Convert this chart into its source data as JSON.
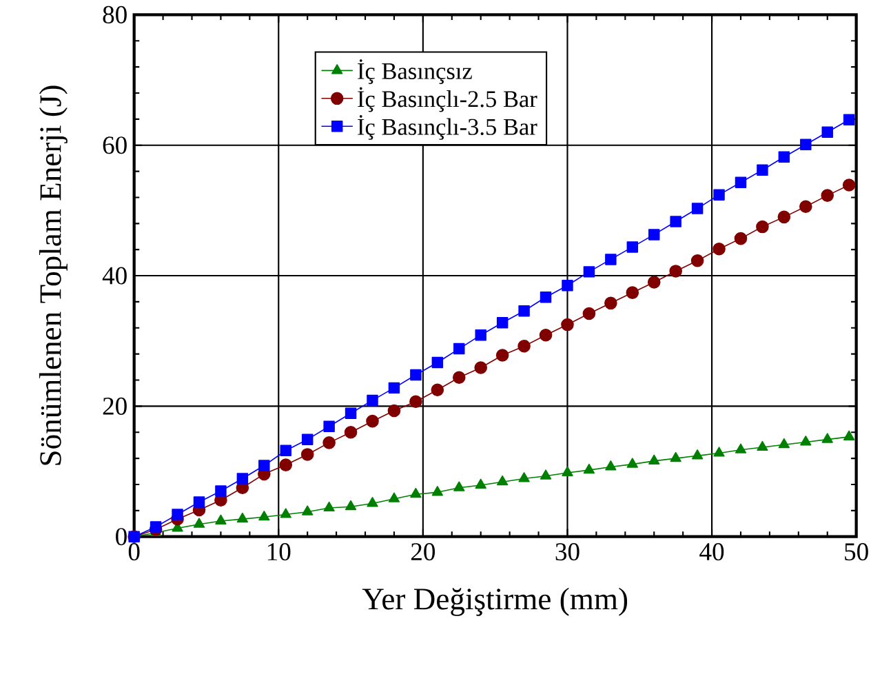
{
  "chart_data": {
    "type": "line",
    "xlabel": "Yer Değiştirme (mm)",
    "ylabel": "Sönümlenen Toplam Enerji (J)",
    "x": [
      0,
      1.5,
      3,
      4.5,
      6,
      7.5,
      9,
      10.5,
      12,
      13.5,
      15,
      16.5,
      18,
      19.5,
      21,
      22.5,
      24,
      25.5,
      27,
      28.5,
      30,
      31.5,
      33,
      34.5,
      36,
      37.5,
      39,
      40.5,
      42,
      43.5,
      45,
      46.5,
      48,
      49.5
    ],
    "series": [
      {
        "name": "İç Basınçsız",
        "color": "#008000",
        "marker": "triangle",
        "values": [
          0,
          0.6,
          1.3,
          1.9,
          2.4,
          2.7,
          3.0,
          3.4,
          3.8,
          4.4,
          4.6,
          5.1,
          5.8,
          6.5,
          6.8,
          7.5,
          7.9,
          8.4,
          8.9,
          9.3,
          9.8,
          10.2,
          10.7,
          11.1,
          11.6,
          12.0,
          12.4,
          12.8,
          13.3,
          13.7,
          14.1,
          14.5,
          14.9,
          15.3
        ]
      },
      {
        "name": "İç Basınçlı-2.5 Bar",
        "color": "#800000",
        "marker": "circle",
        "values": [
          0,
          1.1,
          2.7,
          4.1,
          5.6,
          7.5,
          9.6,
          11.0,
          12.6,
          14.4,
          16.0,
          17.7,
          19.3,
          20.7,
          22.5,
          24.4,
          25.9,
          27.8,
          29.2,
          30.9,
          32.5,
          34.2,
          35.8,
          37.4,
          39.0,
          40.7,
          42.3,
          44.1,
          45.7,
          47.5,
          49.0,
          50.6,
          52.3,
          53.9
        ]
      },
      {
        "name": "İç Basınçlı-3.5 Bar",
        "color": "#0000ff",
        "marker": "square",
        "values": [
          0,
          1.5,
          3.4,
          5.3,
          7.0,
          8.9,
          10.9,
          13.2,
          14.9,
          16.9,
          18.9,
          20.9,
          22.8,
          24.8,
          26.7,
          28.8,
          30.9,
          32.8,
          34.6,
          36.7,
          38.5,
          40.6,
          42.5,
          44.4,
          46.3,
          48.3,
          50.3,
          52.4,
          54.3,
          56.2,
          58.2,
          60.1,
          62.0,
          63.9
        ]
      }
    ],
    "xlim": [
      0,
      50
    ],
    "ylim": [
      0,
      80
    ],
    "xticks": [
      0,
      10,
      20,
      30,
      40,
      50
    ],
    "yticks": [
      0,
      20,
      40,
      60,
      80
    ],
    "grid": true,
    "legend": "top"
  }
}
